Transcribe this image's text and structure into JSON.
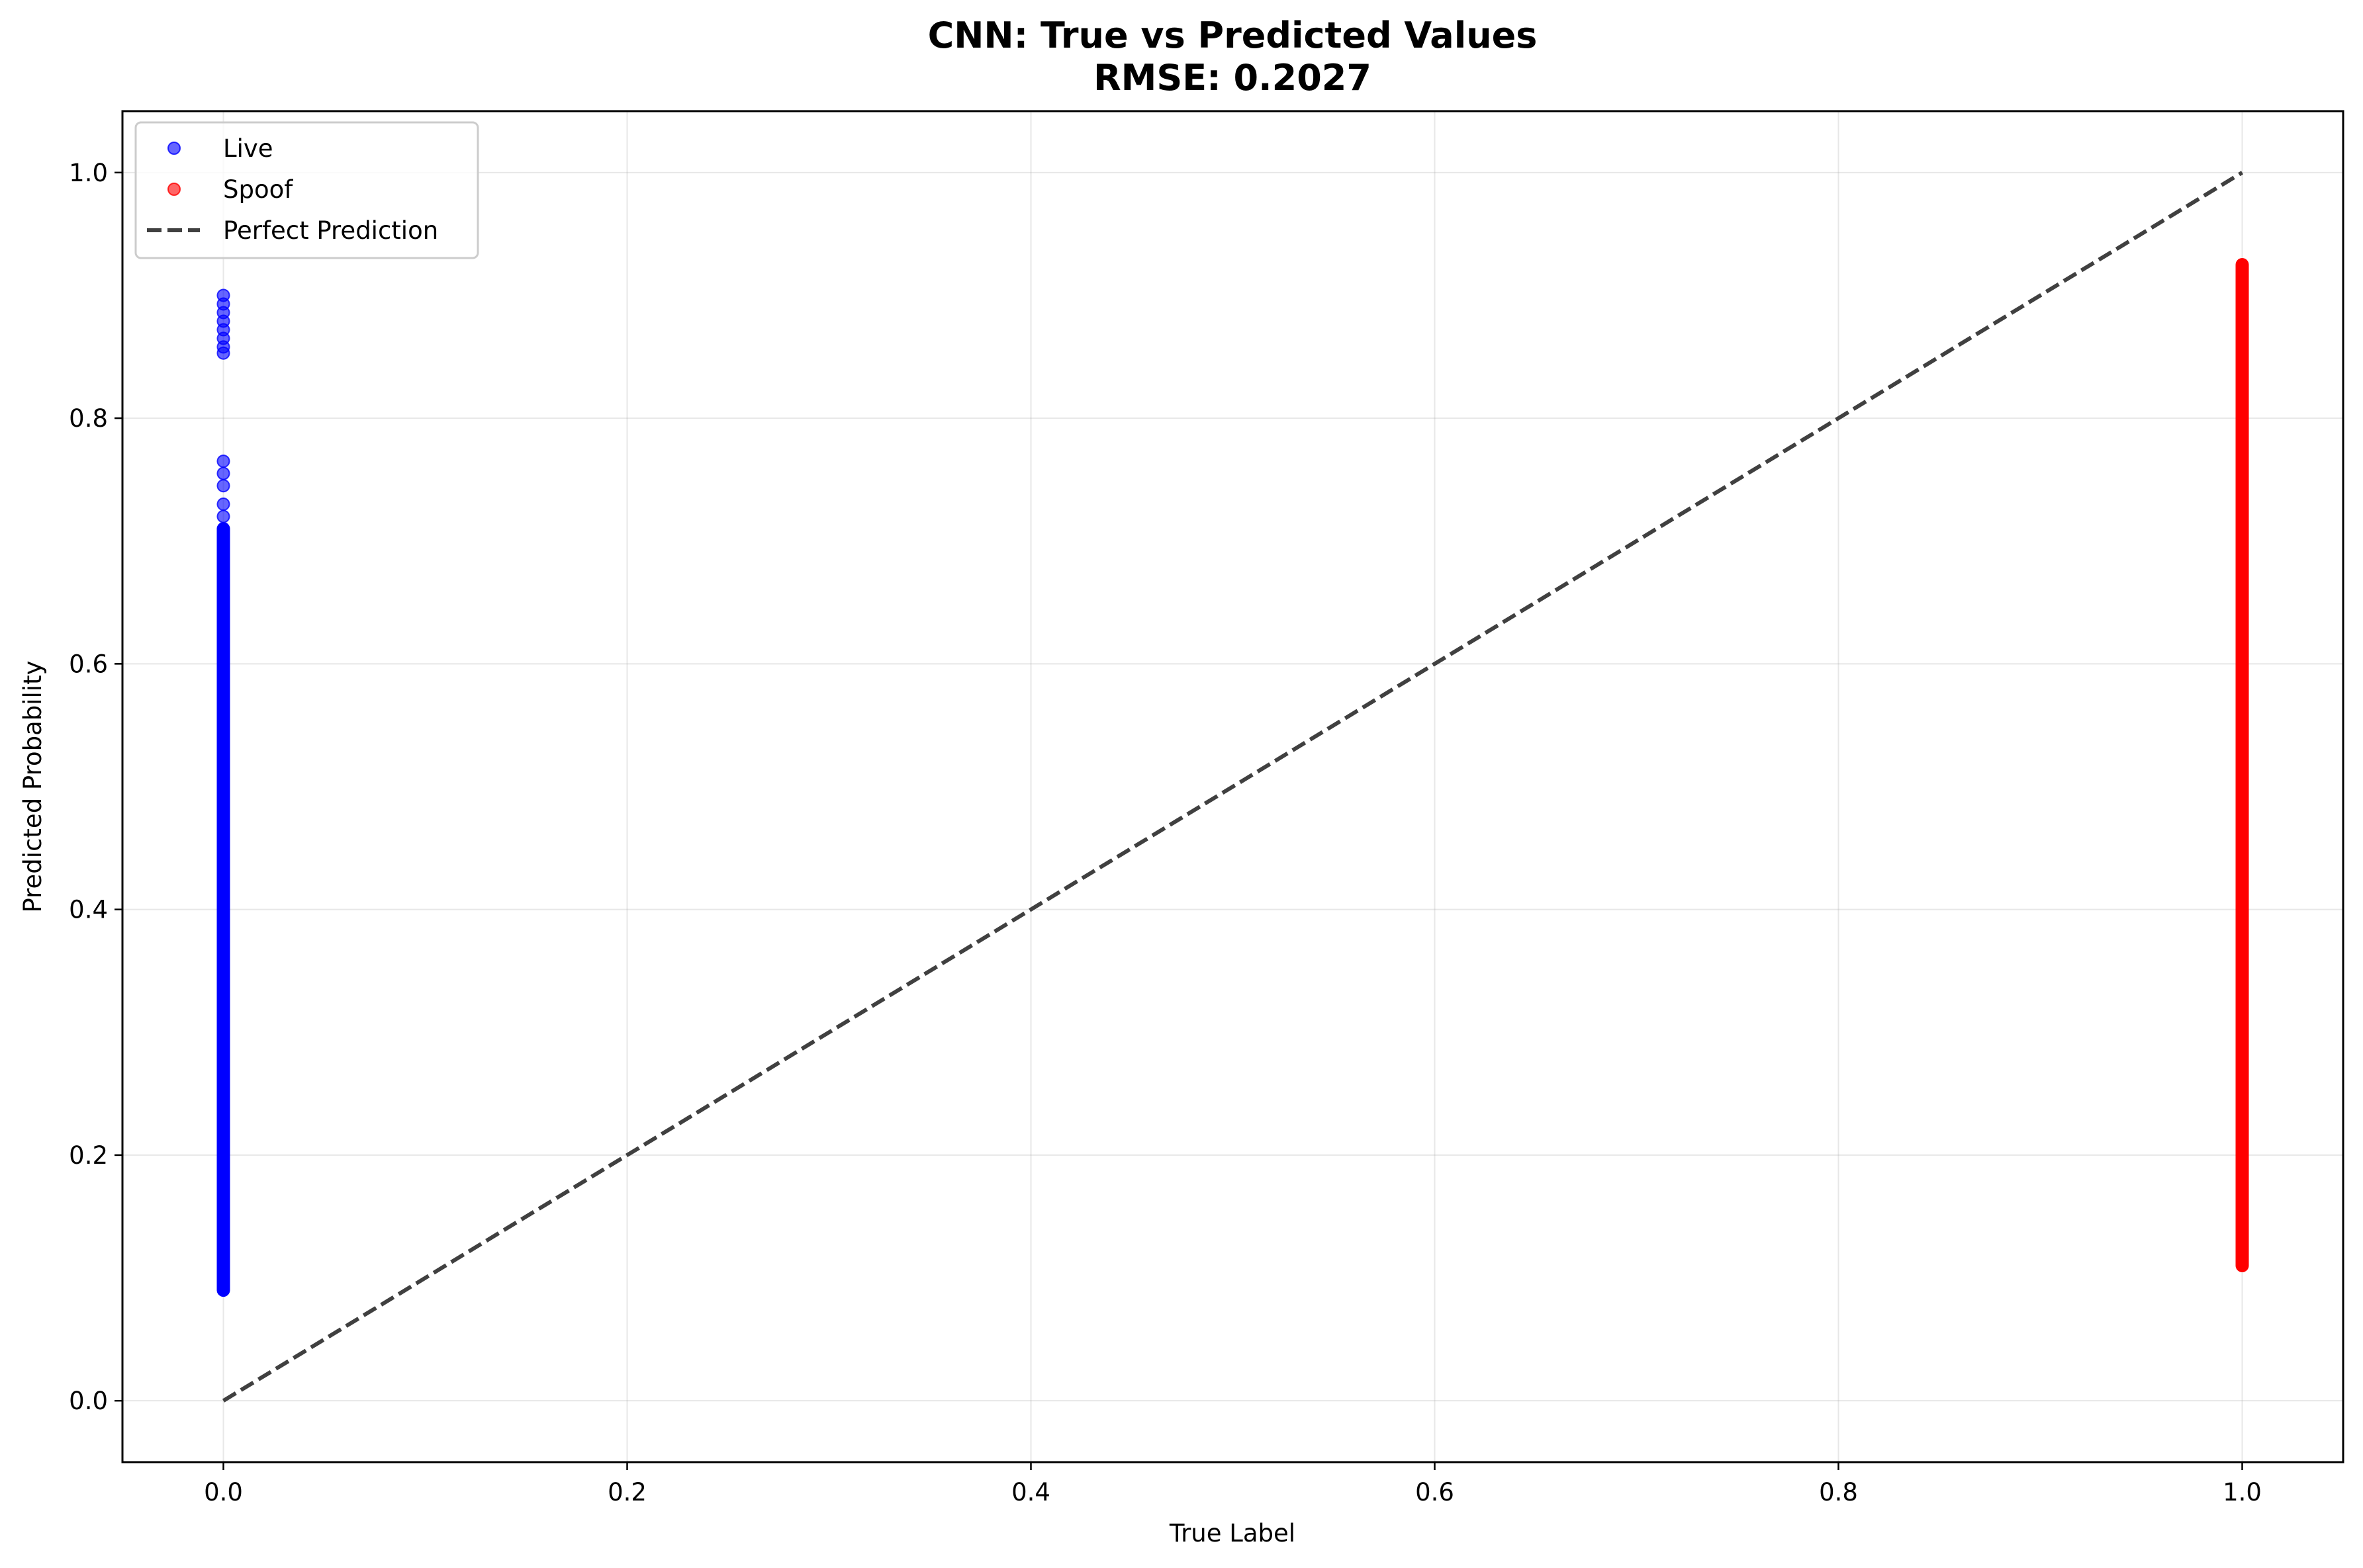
{
  "chart_data": {
    "type": "scatter",
    "title": "CNN: True vs Predicted Values",
    "subtitle": "RMSE: 0.2027",
    "xlabel": "True Label",
    "ylabel": "Predicted Probability",
    "xlim": [
      -0.05,
      1.05
    ],
    "ylim": [
      -0.05,
      1.05
    ],
    "xticks": [
      "0.0",
      "0.2",
      "0.4",
      "0.6",
      "0.8",
      "1.0"
    ],
    "yticks": [
      "0.0",
      "0.2",
      "0.4",
      "0.6",
      "0.8",
      "1.0"
    ],
    "grid": true,
    "legend_position": "top-left",
    "series": [
      {
        "name": "Live",
        "color": "#0000ff",
        "alpha": 0.6,
        "x": 0.0,
        "y_range": [
          0.09,
          0.71
        ],
        "y": [
          0.72,
          0.73,
          0.745,
          0.755,
          0.765,
          0.853,
          0.858,
          0.865,
          0.872,
          0.879,
          0.886,
          0.893,
          0.9
        ]
      },
      {
        "name": "Spoof",
        "color": "#ff0000",
        "alpha": 0.6,
        "x": 1.0,
        "y_range": [
          0.11,
          0.925
        ],
        "y": []
      },
      {
        "name": "Perfect Prediction",
        "type": "line",
        "style": "dashed",
        "color": "#404040",
        "x": [
          0.0,
          1.0
        ],
        "y": [
          0.0,
          1.0
        ]
      }
    ]
  }
}
